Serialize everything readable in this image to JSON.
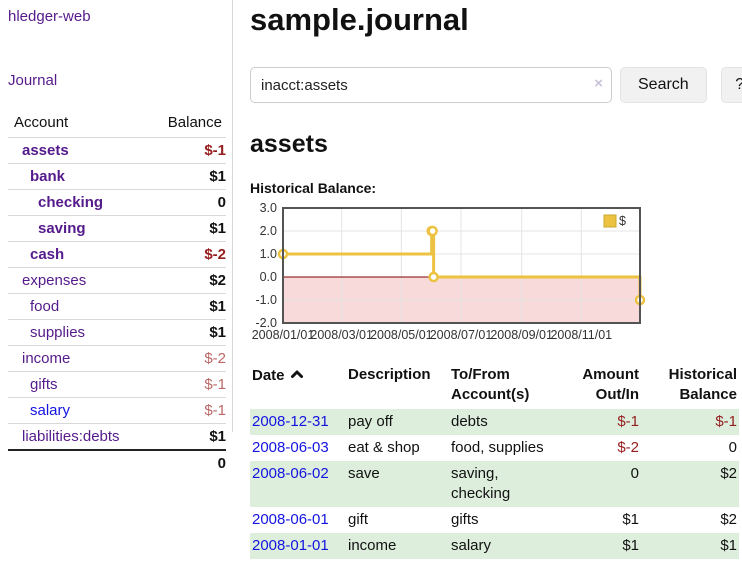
{
  "colors": {
    "purple": "#551a8b",
    "blue": "#1414e0",
    "red_strong": "#951d1d",
    "red_soft": "#bd6867",
    "stripe_green": "#ddeedd",
    "gold": "#edc240"
  },
  "brand": "hledger-web",
  "nav": {
    "journal": "Journal"
  },
  "sidebar": {
    "headers": {
      "account": "Account",
      "balance": "Balance"
    },
    "accounts": [
      {
        "name": "assets",
        "indent": 0,
        "emph": true,
        "balance": "$-1"
      },
      {
        "name": "bank",
        "indent": 1,
        "emph": true,
        "balance": "$1"
      },
      {
        "name": "checking",
        "indent": 2,
        "emph": true,
        "balance": "0"
      },
      {
        "name": "saving",
        "indent": 2,
        "emph": true,
        "balance": "$1"
      },
      {
        "name": "cash",
        "indent": 1,
        "emph": true,
        "balance": "$-2"
      },
      {
        "name": "expenses",
        "indent": 0,
        "emph": false,
        "balance": "$2"
      },
      {
        "name": "food",
        "indent": 1,
        "emph": false,
        "balance": "$1"
      },
      {
        "name": "supplies",
        "indent": 1,
        "emph": false,
        "balance": "$1"
      },
      {
        "name": "income",
        "indent": 0,
        "emph": false,
        "balance": "$-2"
      },
      {
        "name": "gifts",
        "indent": 1,
        "emph": false,
        "balance": "$-1"
      },
      {
        "name": "salary",
        "indent": 1,
        "emph": false,
        "balance": "$-1",
        "blue": true
      },
      {
        "name": "liabilities:debts",
        "indent": 0,
        "emph": false,
        "balance": "$1"
      }
    ],
    "total": "0"
  },
  "header": {
    "title": "sample.journal"
  },
  "search": {
    "value": "inacct:assets",
    "clear_icon": "×",
    "button": "Search",
    "help": "?"
  },
  "account_page": {
    "title": "assets",
    "chart_label": "Historical Balance:"
  },
  "chart_data": {
    "type": "line",
    "step": true,
    "title": "Historical Balance",
    "series": [
      {
        "name": "$",
        "color": "#edc240",
        "points": [
          [
            "2008-01-01",
            1
          ],
          [
            "2008-06-01",
            2
          ],
          [
            "2008-06-02",
            2
          ],
          [
            "2008-06-03",
            0
          ],
          [
            "2008-12-31",
            -1
          ]
        ]
      }
    ],
    "x_domain": [
      "2008-01-01",
      "2008-12-31"
    ],
    "x_ticks": [
      "2008/01/01",
      "2008/03/01",
      "2008/05/01",
      "2008/07/01",
      "2008/09/01",
      "2008/11/01"
    ],
    "y_ticks": [
      3.0,
      2.0,
      1.0,
      0.0,
      -1.0,
      -2.0
    ],
    "ylim": [
      -2,
      3
    ],
    "grid": true,
    "legend_position": "top-right",
    "negative_region_color": "#f9dada",
    "zero_line_color": "#800000"
  },
  "register": {
    "headers": {
      "date": "Date",
      "description": "Description",
      "accounts_line1": "To/From",
      "accounts_line2": "Account(s)",
      "amount_line1": "Amount",
      "amount_line2": "Out/In",
      "balance_line1": "Historical",
      "balance_line2": "Balance"
    },
    "rows": [
      {
        "date": "2008-12-31",
        "description": "pay off",
        "accounts": "debts",
        "amount": "$-1",
        "balance": "$-1"
      },
      {
        "date": "2008-06-03",
        "description": "eat & shop",
        "accounts": "food, supplies",
        "amount": "$-2",
        "balance": "0"
      },
      {
        "date": "2008-06-02",
        "description": "save",
        "accounts": "saving, checking",
        "amount": "0",
        "balance": "$2"
      },
      {
        "date": "2008-06-01",
        "description": "gift",
        "accounts": "gifts",
        "amount": "$1",
        "balance": "$2"
      },
      {
        "date": "2008-01-01",
        "description": "income",
        "accounts": "salary",
        "amount": "$1",
        "balance": "$1"
      }
    ]
  }
}
